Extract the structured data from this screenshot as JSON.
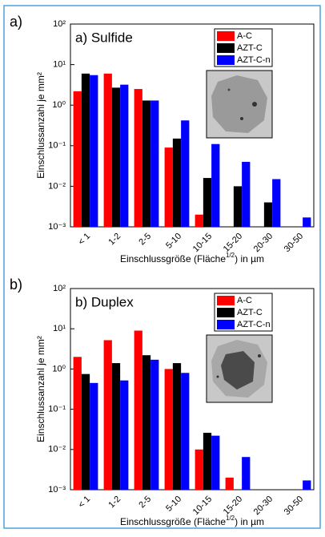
{
  "chart_data": [
    {
      "type": "bar",
      "panel": "a)",
      "title": "a) Sulfide",
      "ylabel": "Einschlussanzahl je mm²",
      "xlabel": [
        "Einschlussgröße (Fläche",
        "1/2",
        ") in µm"
      ],
      "categories": [
        "< 1",
        "1-2",
        "2-5",
        "5-10",
        "10-15",
        "15-20",
        "20-30",
        "30-50"
      ],
      "series": [
        {
          "name": "A-C",
          "color": "#ff0000",
          "values": [
            2.2,
            6.0,
            2.5,
            0.09,
            0.002,
            null,
            null,
            null
          ]
        },
        {
          "name": "AZT-C",
          "color": "#000000",
          "values": [
            6.0,
            2.7,
            1.3,
            0.15,
            0.016,
            0.01,
            0.004,
            null
          ]
        },
        {
          "name": "AZT-C-n",
          "color": "#0000ff",
          "values": [
            5.5,
            3.2,
            1.3,
            0.42,
            0.11,
            0.04,
            0.015,
            0.0017
          ]
        }
      ],
      "log_y": true,
      "ylim": [
        0.001,
        100
      ],
      "yticks": [
        {
          "value": 0.001,
          "label": "10⁻³"
        },
        {
          "value": 0.01,
          "label": "10⁻²"
        },
        {
          "value": 0.1,
          "label": "10⁻¹"
        },
        {
          "value": 1,
          "label": "10⁰"
        },
        {
          "value": 10,
          "label": "10¹"
        },
        {
          "value": 100,
          "label": "10²"
        }
      ],
      "legend": "upper right"
    },
    {
      "type": "bar",
      "panel": "b)",
      "title": "b) Duplex",
      "ylabel": "Einschlussanzahl je mm²",
      "xlabel": [
        "Einschlussgröße (Fläche",
        "1/2",
        ") in µm"
      ],
      "categories": [
        "< 1",
        "1-2",
        "2-5",
        "5-10",
        "10-15",
        "15-20",
        "20-30",
        "30-50"
      ],
      "series": [
        {
          "name": "A-C",
          "color": "#ff0000",
          "values": [
            2.0,
            5.2,
            9.0,
            1.0,
            0.01,
            0.002,
            null,
            null
          ]
        },
        {
          "name": "AZT-C",
          "color": "#000000",
          "values": [
            0.75,
            1.4,
            2.2,
            1.4,
            0.026,
            null,
            null,
            null
          ]
        },
        {
          "name": "AZT-C-n",
          "color": "#0000ff",
          "values": [
            0.45,
            0.52,
            1.7,
            0.8,
            0.022,
            0.0065,
            null,
            0.0017
          ]
        }
      ],
      "log_y": true,
      "ylim": [
        0.001,
        100
      ],
      "yticks": [
        {
          "value": 0.001,
          "label": "10⁻³"
        },
        {
          "value": 0.01,
          "label": "10⁻²"
        },
        {
          "value": 0.1,
          "label": "10⁻¹"
        },
        {
          "value": 1,
          "label": "10⁰"
        },
        {
          "value": 10,
          "label": "10¹"
        },
        {
          "value": 100,
          "label": "10²"
        }
      ],
      "legend": "upper right"
    }
  ]
}
